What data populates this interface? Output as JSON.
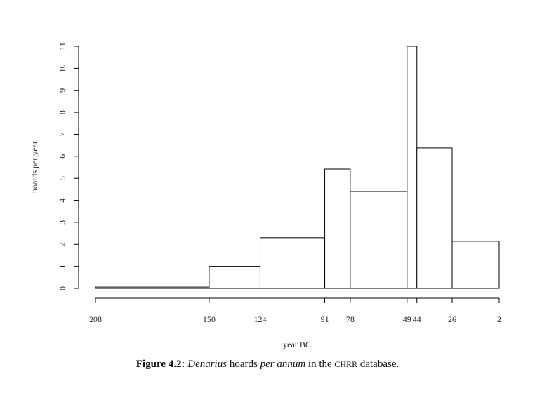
{
  "chart_data": {
    "type": "histogram",
    "xlabel": "year BC",
    "ylabel": "hoards per year",
    "bins": [
      208,
      150,
      124,
      91,
      78,
      49,
      44,
      26,
      2
    ],
    "values": [
      0.06,
      1,
      2.3,
      5.42,
      4.4,
      11,
      6.38,
      2.14
    ],
    "color": "#ffffff",
    "edgecolor": "#000000",
    "xlim": [
      208,
      2
    ],
    "xticks": [
      208,
      150,
      124,
      91,
      78,
      49,
      44,
      26,
      2
    ],
    "ylim": [
      0,
      11
    ],
    "yticks": [
      0,
      1,
      2,
      3,
      4,
      5,
      6,
      7,
      8,
      9,
      10,
      11
    ],
    "grid": false
  },
  "caption": {
    "label": "Figure 4.2:",
    "parts": [
      {
        "text": "Denarius",
        "style": "italic"
      },
      {
        "text": "hoards",
        "style": "normal"
      },
      {
        "text": "per annum",
        "style": "italic"
      },
      {
        "text": "in the",
        "style": "normal"
      },
      {
        "text": "CHRR",
        "style": "smallcaps"
      },
      {
        "text": "database.",
        "style": "normal"
      }
    ]
  }
}
